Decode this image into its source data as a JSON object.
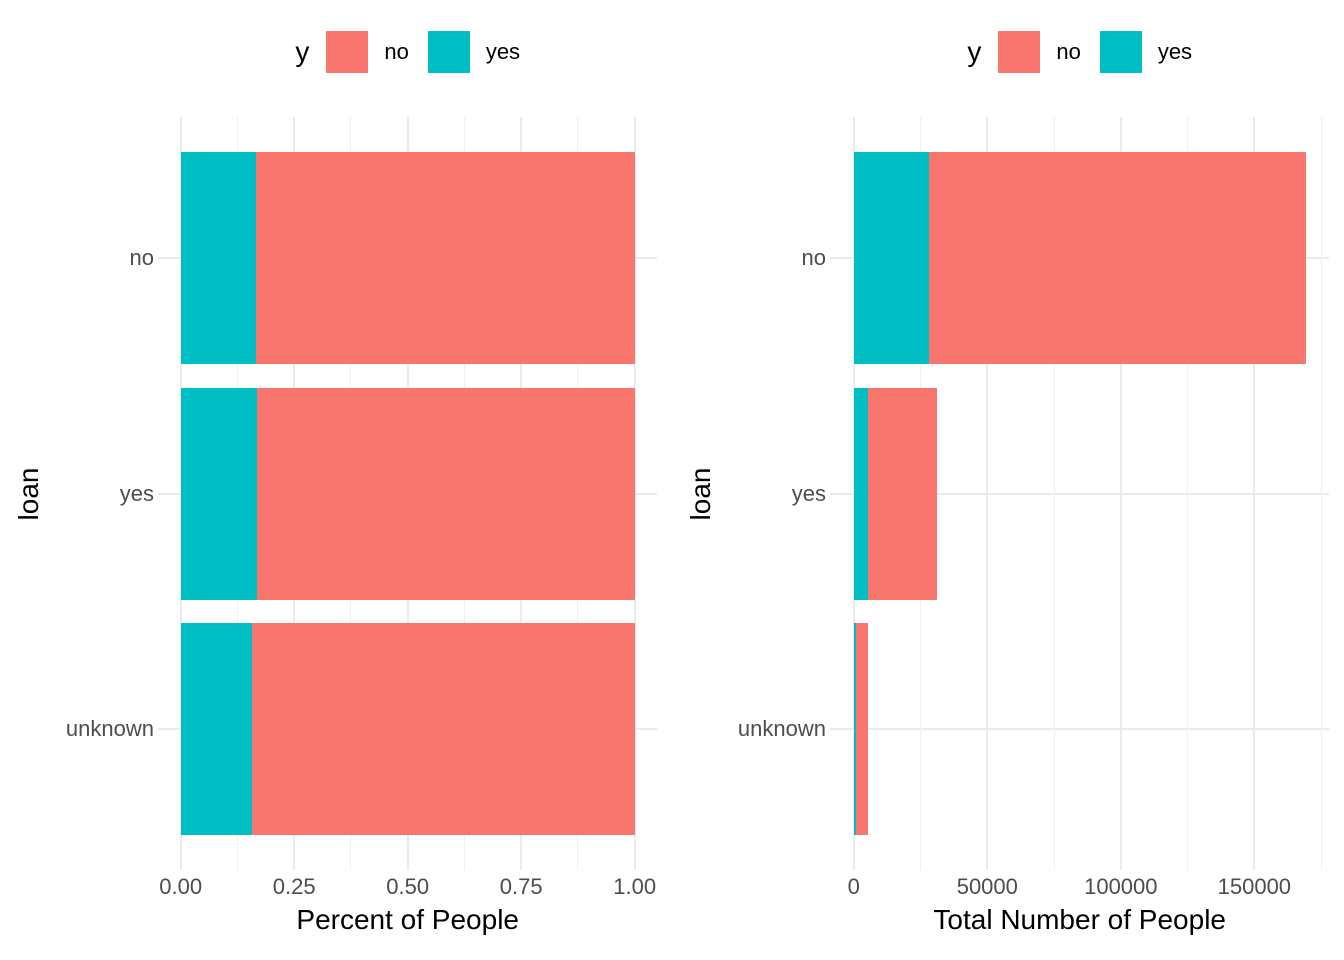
{
  "figure": {
    "background": "#FFFFFF",
    "axis_text_color": "#4D4D4D",
    "title_text_color": "#000000",
    "grid_major_color": "#EBEBEB",
    "grid_minor_color": "#F0F0F0"
  },
  "chart_data": [
    {
      "type": "bar",
      "orientation": "horizontal",
      "stacked": true,
      "position": "fill",
      "title": "",
      "xlabel": "Percent of People",
      "ylabel": "loan",
      "legend_position": "top",
      "legend_title": "y",
      "legend_entries": [
        {
          "label": "no",
          "color": "#F8766D"
        },
        {
          "label": "yes",
          "color": "#00BFC4"
        }
      ],
      "categories": [
        "no",
        "yes",
        "unknown"
      ],
      "series": [
        {
          "name": "yes",
          "color": "#00BFC4",
          "values": [
            0.165,
            0.167,
            0.157
          ]
        },
        {
          "name": "no",
          "color": "#F8766D",
          "values": [
            0.835,
            0.833,
            0.843
          ]
        }
      ],
      "x_ticks": [
        {
          "value": 0,
          "label": "0.00"
        },
        {
          "value": 0.25,
          "label": "0.25"
        },
        {
          "value": 0.5,
          "label": "0.50"
        },
        {
          "value": 0.75,
          "label": "0.75"
        },
        {
          "value": 1.0,
          "label": "1.00"
        }
      ],
      "x_minor": [
        0.125,
        0.375,
        0.625,
        0.875
      ],
      "x_domain": [
        -0.05,
        1.05
      ],
      "xlim": [
        0,
        1
      ],
      "grid": true
    },
    {
      "type": "bar",
      "orientation": "horizontal",
      "stacked": true,
      "position": "stack",
      "title": "",
      "xlabel": "Total Number of People",
      "ylabel": "loan",
      "legend_position": "top",
      "legend_title": "y",
      "legend_entries": [
        {
          "label": "no",
          "color": "#F8766D"
        },
        {
          "label": "yes",
          "color": "#00BFC4"
        }
      ],
      "categories": [
        "no",
        "yes",
        "unknown"
      ],
      "series": [
        {
          "name": "yes",
          "color": "#00BFC4",
          "values": [
            28000,
            5200,
            900
          ]
        },
        {
          "name": "no",
          "color": "#F8766D",
          "values": [
            141500,
            26000,
            4600
          ]
        }
      ],
      "x_ticks": [
        {
          "value": 0,
          "label": "0"
        },
        {
          "value": 50000,
          "label": "50000"
        },
        {
          "value": 100000,
          "label": "100000"
        },
        {
          "value": 150000,
          "label": "150000"
        }
      ],
      "x_minor": [
        25000,
        75000,
        125000,
        175000
      ],
      "x_domain": [
        -8900,
        178100
      ],
      "xlim": [
        0,
        170000
      ],
      "grid": true
    }
  ]
}
